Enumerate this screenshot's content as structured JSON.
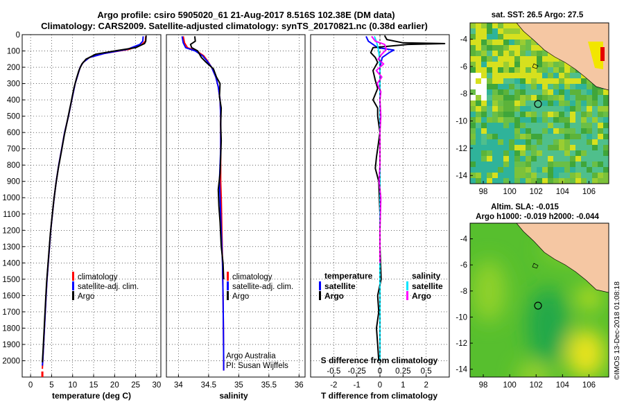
{
  "title_line1": "Argo profile: csiro 5905020_61 21-Aug-2017 8.516S 102.38E (DM data)",
  "title_line2": "Climatology: CARS2009. Satellite-adjusted climatology: synTS_20170821.nc (0.38d earlier)",
  "credit": "©IMOS 13-Dec-2018 01:08:18",
  "colors": {
    "climatology": "#ff0000",
    "satellite": "#0000ff",
    "argo": "#000000",
    "sat_salinity": "#00e5ff",
    "argo_salinity": "#ff00ff"
  },
  "depth_ticks": [
    "0",
    "100",
    "200",
    "300",
    "400",
    "500",
    "600",
    "700",
    "800",
    "900",
    "1000",
    "1100",
    "1200",
    "1300",
    "1400",
    "1500",
    "1600",
    "1700",
    "1800",
    "1900",
    "2000"
  ],
  "chart_data": [
    {
      "type": "line",
      "xlabel": "temperature (deg C)",
      "xlim": [
        -2,
        31
      ],
      "ylim": [
        2100,
        0
      ],
      "xticks": [
        "0",
        "5",
        "10",
        "15",
        "20",
        "25",
        "30"
      ],
      "legend": [
        "climatology",
        "satellite-adj. clim.",
        "Argo"
      ],
      "series": [
        {
          "name": "climatology",
          "points": [
            [
              27.4,
              10
            ],
            [
              27.3,
              40
            ],
            [
              26.5,
              60
            ],
            [
              23.5,
              90
            ],
            [
              17.5,
              115
            ],
            [
              14.0,
              140
            ],
            [
              12.5,
              170
            ],
            [
              11.8,
              200
            ],
            [
              11.2,
              250
            ],
            [
              10.6,
              300
            ],
            [
              9.8,
              400
            ],
            [
              9.0,
              500
            ],
            [
              8.1,
              600
            ],
            [
              7.4,
              700
            ],
            [
              6.7,
              800
            ],
            [
              6.1,
              900
            ],
            [
              5.6,
              1000
            ],
            [
              5.2,
              1100
            ],
            [
              4.8,
              1200
            ],
            [
              4.5,
              1300
            ],
            [
              4.2,
              1400
            ],
            [
              3.9,
              1500
            ],
            [
              3.7,
              1600
            ],
            [
              3.5,
              1700
            ],
            [
              3.3,
              1800
            ],
            [
              3.1,
              1900
            ],
            [
              2.9,
              2000
            ],
            [
              2.8,
              2050
            ]
          ]
        },
        {
          "name": "satellite-adj. clim.",
          "points": [
            [
              26.8,
              10
            ],
            [
              26.7,
              40
            ],
            [
              26.0,
              60
            ],
            [
              23.0,
              90
            ],
            [
              17.5,
              115
            ],
            [
              14.0,
              140
            ],
            [
              12.5,
              170
            ],
            [
              11.8,
              200
            ],
            [
              11.2,
              250
            ],
            [
              10.6,
              300
            ],
            [
              9.8,
              400
            ],
            [
              9.0,
              500
            ],
            [
              8.1,
              600
            ],
            [
              7.4,
              700
            ],
            [
              6.7,
              800
            ],
            [
              6.1,
              900
            ],
            [
              5.6,
              1000
            ],
            [
              5.2,
              1100
            ],
            [
              4.8,
              1200
            ],
            [
              4.5,
              1300
            ],
            [
              4.2,
              1400
            ],
            [
              3.9,
              1500
            ],
            [
              3.7,
              1600
            ],
            [
              3.5,
              1700
            ],
            [
              3.3,
              1800
            ],
            [
              3.1,
              1900
            ],
            [
              2.9,
              2000
            ],
            [
              2.8,
              2030
            ]
          ]
        },
        {
          "name": "Argo",
          "points": [
            [
              27.5,
              5
            ],
            [
              27.4,
              40
            ],
            [
              27.1,
              55
            ],
            [
              25.0,
              80
            ],
            [
              20.0,
              100
            ],
            [
              15.5,
              120
            ],
            [
              13.2,
              150
            ],
            [
              12.2,
              180
            ],
            [
              11.5,
              220
            ],
            [
              10.9,
              270
            ],
            [
              10.3,
              330
            ],
            [
              9.6,
              420
            ],
            [
              8.8,
              520
            ],
            [
              8.0,
              620
            ],
            [
              7.3,
              720
            ],
            [
              6.6,
              820
            ],
            [
              6.0,
              920
            ],
            [
              5.5,
              1020
            ],
            [
              5.1,
              1120
            ],
            [
              4.7,
              1220
            ],
            [
              4.4,
              1320
            ],
            [
              4.1,
              1420
            ],
            [
              3.8,
              1520
            ],
            [
              3.6,
              1620
            ],
            [
              3.4,
              1720
            ],
            [
              3.2,
              1820
            ],
            [
              3.0,
              1920
            ],
            [
              2.8,
              2010
            ]
          ]
        }
      ]
    },
    {
      "type": "line",
      "xlabel": "salinity",
      "xlim": [
        33.8,
        36.1
      ],
      "ylim": [
        2100,
        0
      ],
      "xticks": [
        "34",
        "34.5",
        "35",
        "35.5",
        "36"
      ],
      "legend": [
        "climatology",
        "satellite-adj. clim.",
        "Argo"
      ],
      "annotation": [
        "Argo Australia",
        "PI: Susan Wijffels"
      ],
      "series": [
        {
          "name": "climatology",
          "points": [
            [
              34.08,
              10
            ],
            [
              34.1,
              50
            ],
            [
              34.15,
              80
            ],
            [
              34.3,
              100
            ],
            [
              34.42,
              130
            ],
            [
              34.48,
              160
            ],
            [
              34.55,
              200
            ],
            [
              34.62,
              260
            ],
            [
              34.66,
              320
            ],
            [
              34.69,
              400
            ],
            [
              34.7,
              500
            ],
            [
              34.7,
              600
            ],
            [
              34.7,
              700
            ],
            [
              34.7,
              800
            ],
            [
              34.7,
              900
            ],
            [
              34.71,
              1000
            ],
            [
              34.72,
              1200
            ],
            [
              34.73,
              1400
            ],
            [
              34.74,
              1600
            ],
            [
              34.745,
              1800
            ],
            [
              34.75,
              2000
            ],
            [
              34.75,
              2060
            ]
          ]
        },
        {
          "name": "satellite-adj. clim.",
          "points": [
            [
              34.06,
              10
            ],
            [
              34.08,
              50
            ],
            [
              34.12,
              80
            ],
            [
              34.28,
              100
            ],
            [
              34.4,
              130
            ],
            [
              34.47,
              160
            ],
            [
              34.55,
              200
            ],
            [
              34.62,
              260
            ],
            [
              34.66,
              320
            ],
            [
              34.69,
              400
            ],
            [
              34.7,
              500
            ],
            [
              34.7,
              600
            ],
            [
              34.7,
              700
            ],
            [
              34.69,
              800
            ],
            [
              34.68,
              900
            ],
            [
              34.69,
              1000
            ],
            [
              34.71,
              1200
            ],
            [
              34.73,
              1400
            ],
            [
              34.74,
              1600
            ],
            [
              34.745,
              1800
            ],
            [
              34.75,
              2000
            ],
            [
              34.75,
              2060
            ]
          ]
        },
        {
          "name": "Argo",
          "points": [
            [
              34.27,
              10
            ],
            [
              34.28,
              40
            ],
            [
              34.2,
              60
            ],
            [
              34.22,
              80
            ],
            [
              34.32,
              100
            ],
            [
              34.38,
              140
            ],
            [
              34.46,
              170
            ],
            [
              34.58,
              210
            ],
            [
              34.63,
              260
            ],
            [
              34.69,
              300
            ],
            [
              34.68,
              380
            ],
            [
              34.71,
              450
            ],
            [
              34.7,
              550
            ],
            [
              34.71,
              650
            ],
            [
              34.7,
              750
            ],
            [
              34.69,
              850
            ],
            [
              34.66,
              950
            ],
            [
              34.67,
              1050
            ],
            [
              34.69,
              1150
            ],
            [
              34.71,
              1300
            ],
            [
              34.74,
              1400
            ],
            [
              34.75,
              1500
            ]
          ]
        }
      ]
    },
    {
      "type": "line",
      "xlabel": "T difference from climatology",
      "xlabel_top": "S difference from climatology",
      "xlim": [
        -3,
        3
      ],
      "ylim": [
        2100,
        0
      ],
      "xticks": [
        "-2",
        "-1",
        "0",
        "1",
        "2"
      ],
      "xticks_top": [
        "-0.5",
        "-0.25",
        "0",
        "0.25",
        "0.5"
      ],
      "legend_temperature": {
        "heading": "temperature",
        "items": [
          "satellite",
          "Argo"
        ]
      },
      "legend_salinity": {
        "heading": "salinity",
        "items": [
          "satellite",
          "Argo"
        ]
      },
      "series": [
        {
          "name": "satellite",
          "group": "temperature",
          "points": [
            [
              -0.6,
              10
            ],
            [
              -0.5,
              40
            ],
            [
              -0.3,
              60
            ],
            [
              -0.1,
              80
            ],
            [
              0.6,
              95
            ],
            [
              0.4,
              110
            ],
            [
              0.1,
              140
            ],
            [
              0,
              200
            ],
            [
              0,
              400
            ],
            [
              0,
              1000
            ],
            [
              0,
              2000
            ]
          ]
        },
        {
          "name": "Argo",
          "group": "temperature",
          "points": [
            [
              0.2,
              5
            ],
            [
              0.3,
              30
            ],
            [
              1.0,
              50
            ],
            [
              2.8,
              55
            ],
            [
              1.2,
              60
            ],
            [
              -0.3,
              80
            ],
            [
              -0.4,
              110
            ],
            [
              -0.2,
              140
            ],
            [
              -0.1,
              170
            ],
            [
              -0.3,
              220
            ],
            [
              -0.2,
              280
            ],
            [
              -0.1,
              330
            ],
            [
              -0.3,
              400
            ],
            [
              -0.1,
              450
            ],
            [
              -0.1,
              500
            ],
            [
              0,
              600
            ],
            [
              -0.1,
              700
            ],
            [
              -0.15,
              750
            ],
            [
              -0.2,
              820
            ],
            [
              -0.05,
              900
            ],
            [
              0,
              1100
            ],
            [
              0,
              1300
            ],
            [
              0.05,
              1500
            ],
            [
              -0.1,
              1600
            ],
            [
              -0.05,
              1700
            ],
            [
              -0.15,
              1800
            ],
            [
              -0.1,
              1900
            ],
            [
              -0.05,
              2000
            ]
          ]
        },
        {
          "name": "satellite",
          "group": "salinity",
          "points": [
            [
              -0.06,
              10
            ],
            [
              -0.04,
              40
            ],
            [
              -0.02,
              80
            ],
            [
              -0.01,
              120
            ],
            [
              0,
              200
            ],
            [
              0,
              400
            ],
            [
              0,
              800
            ],
            [
              0,
              1200
            ],
            [
              0,
              1600
            ],
            [
              0,
              2000
            ]
          ]
        },
        {
          "name": "Argo",
          "group": "salinity",
          "points": [
            [
              -0.09,
              10
            ],
            [
              -0.05,
              40
            ],
            [
              0.05,
              60
            ],
            [
              0.07,
              90
            ],
            [
              0.02,
              120
            ],
            [
              -0.02,
              150
            ],
            [
              0.04,
              180
            ],
            [
              -0.04,
              220
            ],
            [
              0.02,
              260
            ],
            [
              -0.03,
              300
            ],
            [
              0.01,
              350
            ],
            [
              0,
              400
            ],
            [
              0.01,
              500
            ],
            [
              0,
              600
            ],
            [
              0,
              800
            ],
            [
              -0.01,
              900
            ],
            [
              0.01,
              1000
            ],
            [
              0,
              1200
            ],
            [
              0,
              1400
            ]
          ]
        }
      ]
    }
  ],
  "map_sst": {
    "title": "sat. SST: 26.5 Argo: 27.5",
    "xticks": [
      "98",
      "100",
      "102",
      "104",
      "106"
    ],
    "yticks": [
      "-4",
      "-6",
      "-8",
      "-10",
      "-12",
      "-14"
    ],
    "lon_range": [
      97,
      107.5
    ],
    "lat_range": [
      -14.6,
      -2.8
    ],
    "argo_location": [
      102.38,
      -8.516
    ]
  },
  "map_sla": {
    "title_line1": "Altim. SLA: -0.015",
    "title_line2": "Argo h1000: -0.019 h2000: -0.044",
    "xticks": [
      "98",
      "100",
      "102",
      "104",
      "106"
    ],
    "yticks": [
      "-4",
      "-6",
      "-8",
      "-10",
      "-12",
      "-14"
    ],
    "lon_range": [
      97,
      107.5
    ],
    "lat_range": [
      -14.6,
      -2.8
    ],
    "argo_location": [
      102.38,
      -8.516
    ]
  }
}
